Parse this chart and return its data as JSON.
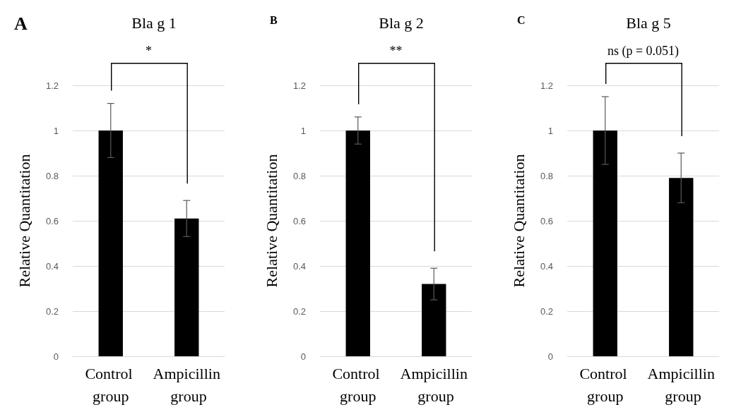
{
  "chart_data": [
    {
      "type": "bar",
      "title": "Bla g 1",
      "ylabel": "Relative Quantitation",
      "categories": [
        "Control group",
        "Ampicillin group"
      ],
      "values": [
        1,
        0.61
      ],
      "errors": [
        0.12,
        0.08
      ],
      "color": "#000000",
      "ylim": [
        0,
        1.2
      ],
      "yticks": [
        0,
        0.2,
        0.4,
        0.6,
        0.8,
        1,
        1.2
      ],
      "grid": "y",
      "annotations": [
        "A",
        "*"
      ]
    },
    {
      "type": "bar",
      "title": "Bla g 2",
      "ylabel": "Relative Quantitation",
      "categories": [
        "Control group",
        "Ampicillin group"
      ],
      "values": [
        1,
        0.32
      ],
      "errors": [
        0.06,
        0.07
      ],
      "color": "#000000",
      "ylim": [
        0,
        1.2
      ],
      "yticks": [
        0,
        0.2,
        0.4,
        0.6,
        0.8,
        1,
        1.2
      ],
      "grid": "y",
      "annotations": [
        "B",
        "**"
      ]
    },
    {
      "type": "bar",
      "title": "Bla g 5",
      "ylabel": "Relative Quantitation",
      "categories": [
        "Control group",
        "Ampicillin group"
      ],
      "values": [
        1,
        0.79
      ],
      "errors": [
        0.15,
        0.11
      ],
      "color": "#000000",
      "ylim": [
        0,
        1.2
      ],
      "yticks": [
        0,
        0.2,
        0.4,
        0.6,
        0.8,
        1,
        1.2
      ],
      "grid": "y",
      "annotations": [
        "C",
        "ns (p = 0.051)"
      ]
    }
  ]
}
